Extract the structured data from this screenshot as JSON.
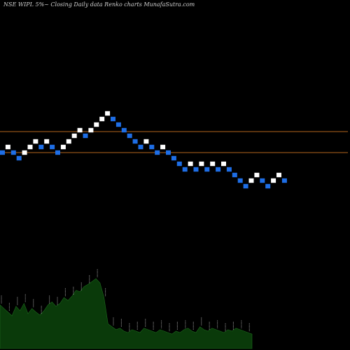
{
  "chart_data": {
    "type": "renko",
    "title": "NSE WIPL  5%~  Closing Daily data  Renko  charts MunafaSutra.com",
    "colors": {
      "background": "#000000",
      "up_brick": "#ffffff",
      "down_brick": "#1e6ee6",
      "reference_line": "#b4661e",
      "volume_fill": "#0a3a0a",
      "volume_edge": "#1d6b1d",
      "title": "#cfcfcf",
      "label": "#d8d8d8"
    },
    "reference_lines": [
      194.0,
      164.0
    ],
    "bricks": [
      {
        "level": 164,
        "dir": "down"
      },
      {
        "level": 172,
        "dir": "up"
      },
      {
        "level": 164,
        "dir": "down"
      },
      {
        "level": 156,
        "dir": "down"
      },
      {
        "level": 164,
        "dir": "up"
      },
      {
        "level": 172,
        "dir": "up"
      },
      {
        "level": 180,
        "dir": "up"
      },
      {
        "level": 172,
        "dir": "down"
      },
      {
        "level": 180,
        "dir": "up"
      },
      {
        "level": 172,
        "dir": "down"
      },
      {
        "level": 164,
        "dir": "down"
      },
      {
        "level": 172,
        "dir": "up"
      },
      {
        "level": 180,
        "dir": "up"
      },
      {
        "level": 188,
        "dir": "up"
      },
      {
        "level": 196,
        "dir": "up"
      },
      {
        "level": 188,
        "dir": "down"
      },
      {
        "level": 196,
        "dir": "up"
      },
      {
        "level": 204,
        "dir": "up"
      },
      {
        "level": 212,
        "dir": "up"
      },
      {
        "level": 220,
        "dir": "up"
      },
      {
        "level": 212,
        "dir": "down"
      },
      {
        "level": 204,
        "dir": "down"
      },
      {
        "level": 196,
        "dir": "down"
      },
      {
        "level": 188,
        "dir": "down"
      },
      {
        "level": 180,
        "dir": "down"
      },
      {
        "level": 172,
        "dir": "down"
      },
      {
        "level": 180,
        "dir": "up"
      },
      {
        "level": 172,
        "dir": "down"
      },
      {
        "level": 164,
        "dir": "down"
      },
      {
        "level": 172,
        "dir": "up"
      },
      {
        "level": 164,
        "dir": "down"
      },
      {
        "level": 156,
        "dir": "down"
      },
      {
        "level": 148,
        "dir": "down"
      },
      {
        "level": 140,
        "dir": "down"
      },
      {
        "level": 148,
        "dir": "up"
      },
      {
        "level": 140,
        "dir": "down"
      },
      {
        "level": 148,
        "dir": "up"
      },
      {
        "level": 140,
        "dir": "down"
      },
      {
        "level": 148,
        "dir": "up"
      },
      {
        "level": 140,
        "dir": "down"
      },
      {
        "level": 148,
        "dir": "up"
      },
      {
        "level": 140,
        "dir": "down"
      },
      {
        "level": 132,
        "dir": "down"
      },
      {
        "level": 124,
        "dir": "down"
      },
      {
        "level": 116,
        "dir": "down"
      },
      {
        "level": 124,
        "dir": "up"
      },
      {
        "level": 132,
        "dir": "up"
      },
      {
        "level": 124,
        "dir": "down"
      },
      {
        "level": 116,
        "dir": "down"
      },
      {
        "level": 124,
        "dir": "up"
      },
      {
        "level": 132,
        "dir": "up"
      },
      {
        "level": 124,
        "dir": "down"
      }
    ],
    "volume": [
      60,
      55,
      50,
      45,
      58,
      52,
      62,
      48,
      55,
      50,
      46,
      52,
      60,
      64,
      58,
      62,
      70,
      66,
      72,
      80,
      78,
      85,
      88,
      92,
      96,
      90,
      70,
      34,
      30,
      26,
      28,
      24,
      22,
      26,
      24,
      22,
      28,
      26,
      24,
      22,
      26,
      24,
      22,
      20,
      24,
      22,
      26,
      28,
      24,
      22,
      30,
      26,
      24,
      28,
      26,
      24,
      22,
      26,
      24,
      28,
      26,
      24,
      22,
      20
    ]
  }
}
